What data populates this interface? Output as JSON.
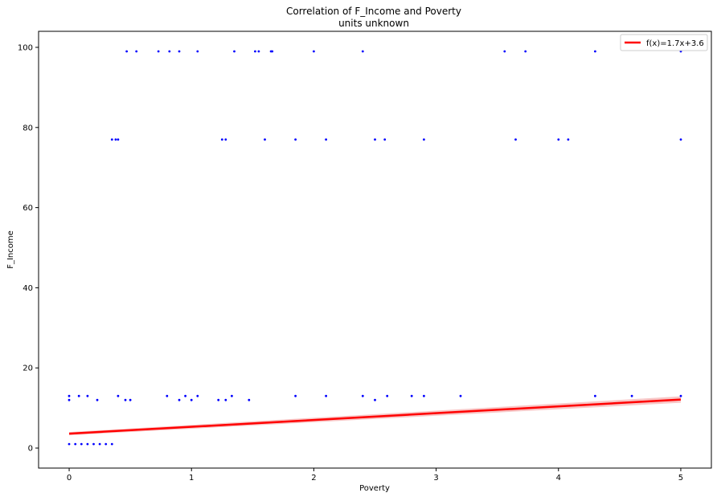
{
  "chart_data": {
    "type": "scatter",
    "title": "Correlation of F_Income and Poverty",
    "subtitle": "units unknown",
    "xlabel": "Poverty",
    "ylabel": "F_Income",
    "xlim": [
      -0.25,
      5.25
    ],
    "ylim": [
      -5,
      104
    ],
    "xticks": [
      "0",
      "1",
      "2",
      "3",
      "4",
      "5"
    ],
    "yticks": [
      "0",
      "20",
      "40",
      "60",
      "80",
      "100"
    ],
    "grid": false,
    "legend": {
      "placement": "top-right",
      "label": "f(x)=1.7x+3.6"
    },
    "colors": {
      "points": "#0000ff",
      "fit_line": "#ff0000",
      "fit_band": "#f4a0a0"
    },
    "fit": {
      "slope": 1.7,
      "intercept": 3.6,
      "x_range": [
        0,
        5
      ]
    },
    "series": [
      {
        "points": [
          [
            0.0,
            1
          ],
          [
            0.05,
            1
          ],
          [
            0.1,
            1
          ],
          [
            0.15,
            1
          ],
          [
            0.2,
            1
          ],
          [
            0.25,
            1
          ],
          [
            0.3,
            1
          ],
          [
            0.35,
            1
          ],
          [
            0.0,
            12
          ],
          [
            0.0,
            13
          ],
          [
            0.08,
            13
          ],
          [
            0.15,
            13
          ],
          [
            0.23,
            12
          ],
          [
            0.4,
            13
          ],
          [
            0.46,
            12
          ],
          [
            0.5,
            12
          ],
          [
            0.8,
            13
          ],
          [
            0.9,
            12
          ],
          [
            0.95,
            13
          ],
          [
            1.0,
            12
          ],
          [
            1.05,
            13
          ],
          [
            1.22,
            12
          ],
          [
            1.28,
            12
          ],
          [
            1.33,
            13
          ],
          [
            1.47,
            12
          ],
          [
            1.85,
            13
          ],
          [
            2.1,
            13
          ],
          [
            2.4,
            13
          ],
          [
            2.5,
            12
          ],
          [
            2.6,
            13
          ],
          [
            2.8,
            13
          ],
          [
            2.9,
            13
          ],
          [
            3.2,
            13
          ],
          [
            4.3,
            13
          ],
          [
            4.6,
            13
          ],
          [
            5.0,
            13
          ],
          [
            0.35,
            77
          ],
          [
            0.38,
            77
          ],
          [
            0.4,
            77
          ],
          [
            1.25,
            77
          ],
          [
            1.28,
            77
          ],
          [
            1.6,
            77
          ],
          [
            1.85,
            77
          ],
          [
            2.1,
            77
          ],
          [
            2.5,
            77
          ],
          [
            2.58,
            77
          ],
          [
            2.9,
            77
          ],
          [
            3.65,
            77
          ],
          [
            4.0,
            77
          ],
          [
            4.08,
            77
          ],
          [
            5.0,
            77
          ],
          [
            0.47,
            99
          ],
          [
            0.55,
            99
          ],
          [
            0.73,
            99
          ],
          [
            0.82,
            99
          ],
          [
            0.9,
            99
          ],
          [
            1.05,
            99
          ],
          [
            1.35,
            99
          ],
          [
            1.52,
            99
          ],
          [
            1.55,
            99
          ],
          [
            1.65,
            99
          ],
          [
            1.66,
            99
          ],
          [
            2.0,
            99
          ],
          [
            2.4,
            99
          ],
          [
            3.56,
            99
          ],
          [
            3.73,
            99
          ],
          [
            4.3,
            99
          ],
          [
            5.0,
            99
          ]
        ]
      }
    ]
  }
}
